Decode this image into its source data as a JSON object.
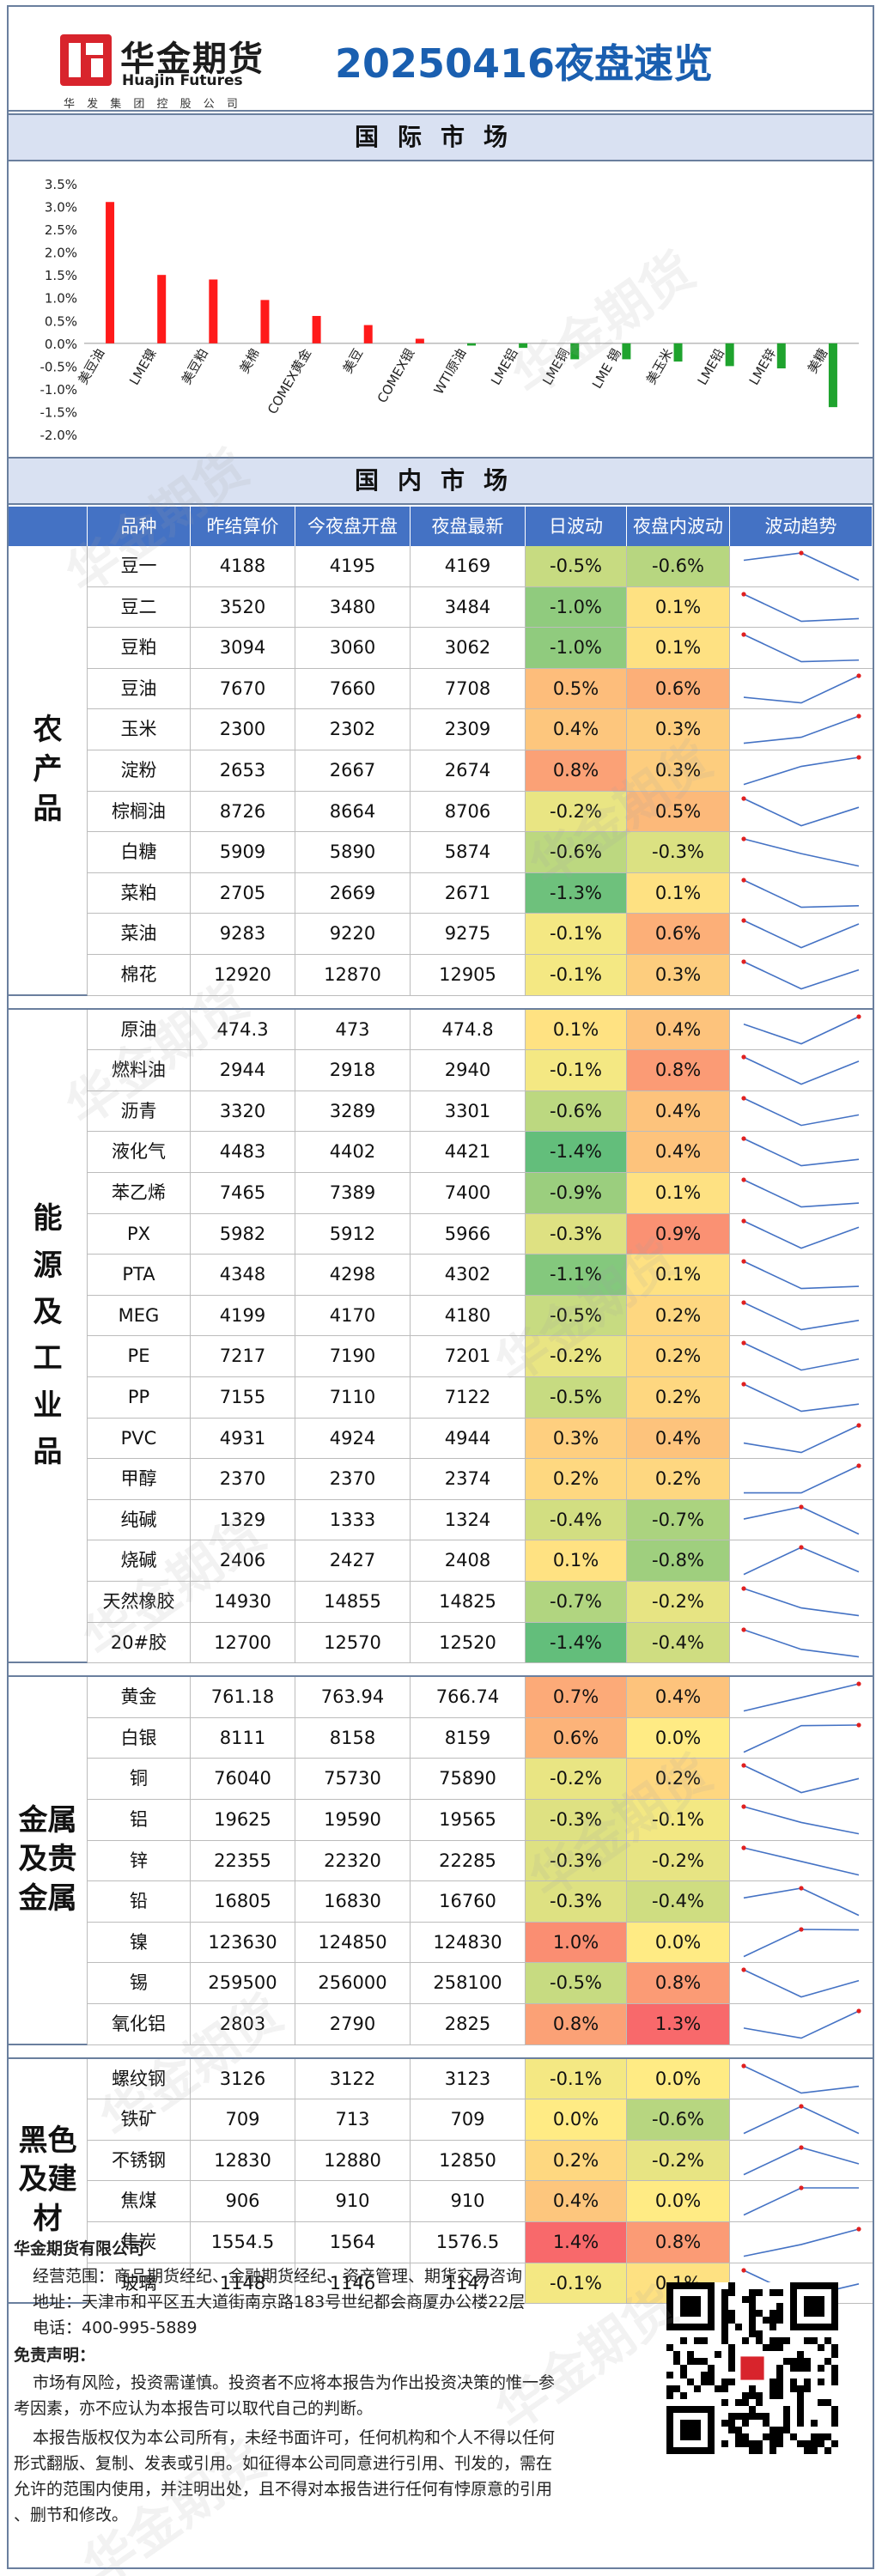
{
  "header": {
    "logo_cn": "华金期货",
    "logo_en": "Huajin Futures",
    "logo_sub": "华 发 集 团 控 股 公 司",
    "title": "20250416夜盘速览"
  },
  "sections": {
    "intl": "国际市场",
    "domestic": "国内市场"
  },
  "chart_data": {
    "type": "bar",
    "categories": [
      "美豆油",
      "LME镍",
      "美豆粕",
      "美棉",
      "COMEX黄金",
      "美豆",
      "COMEX银",
      "WTI原油",
      "LME铝",
      "LME铜",
      "LME 锡",
      "美玉米",
      "LME铅",
      "LME锌",
      "美糖"
    ],
    "values": [
      3.1,
      1.5,
      1.4,
      0.95,
      0.6,
      0.4,
      0.1,
      -0.05,
      -0.1,
      -0.35,
      -0.35,
      -0.4,
      -0.5,
      -0.55,
      -1.4
    ],
    "ylim": [
      -2.0,
      3.5
    ],
    "yticks": [
      "3.5%",
      "3.0%",
      "2.5%",
      "2.0%",
      "1.5%",
      "1.0%",
      "0.5%",
      "0.0%",
      "-0.5%",
      "-1.0%",
      "-1.5%",
      "-2.0%"
    ],
    "colors": {
      "positive": "#ff1a1a",
      "negative": "#1fa32e"
    }
  },
  "table": {
    "headers": [
      "品种",
      "昨结算价",
      "今夜盘开盘",
      "夜盘最新",
      "日波动",
      "夜盘内波动",
      "波动趋势"
    ],
    "groups": [
      {
        "name": "农产品",
        "rows": [
          [
            "豆一",
            "4188",
            "4195",
            "4169",
            "-0.5%",
            "-0.6%"
          ],
          [
            "豆二",
            "3520",
            "3480",
            "3484",
            "-1.0%",
            "0.1%"
          ],
          [
            "豆粕",
            "3094",
            "3060",
            "3062",
            "-1.0%",
            "0.1%"
          ],
          [
            "豆油",
            "7670",
            "7660",
            "7708",
            "0.5%",
            "0.6%"
          ],
          [
            "玉米",
            "2300",
            "2302",
            "2309",
            "0.4%",
            "0.3%"
          ],
          [
            "淀粉",
            "2653",
            "2667",
            "2674",
            "0.8%",
            "0.3%"
          ],
          [
            "棕榈油",
            "8726",
            "8664",
            "8706",
            "-0.2%",
            "0.5%"
          ],
          [
            "白糖",
            "5909",
            "5890",
            "5874",
            "-0.6%",
            "-0.3%"
          ],
          [
            "菜粕",
            "2705",
            "2669",
            "2671",
            "-1.3%",
            "0.1%"
          ],
          [
            "菜油",
            "9283",
            "9220",
            "9275",
            "-0.1%",
            "0.6%"
          ],
          [
            "棉花",
            "12920",
            "12870",
            "12905",
            "-0.1%",
            "0.3%"
          ]
        ]
      },
      {
        "name": "能源及工业品",
        "rows": [
          [
            "原油",
            "474.3",
            "473",
            "474.8",
            "0.1%",
            "0.4%"
          ],
          [
            "燃料油",
            "2944",
            "2918",
            "2940",
            "-0.1%",
            "0.8%"
          ],
          [
            "沥青",
            "3320",
            "3289",
            "3301",
            "-0.6%",
            "0.4%"
          ],
          [
            "液化气",
            "4483",
            "4402",
            "4421",
            "-1.4%",
            "0.4%"
          ],
          [
            "苯乙烯",
            "7465",
            "7389",
            "7400",
            "-0.9%",
            "0.1%"
          ],
          [
            "PX",
            "5982",
            "5912",
            "5966",
            "-0.3%",
            "0.9%"
          ],
          [
            "PTA",
            "4348",
            "4298",
            "4302",
            "-1.1%",
            "0.1%"
          ],
          [
            "MEG",
            "4199",
            "4170",
            "4180",
            "-0.5%",
            "0.2%"
          ],
          [
            "PE",
            "7217",
            "7190",
            "7201",
            "-0.2%",
            "0.2%"
          ],
          [
            "PP",
            "7155",
            "7110",
            "7122",
            "-0.5%",
            "0.2%"
          ],
          [
            "PVC",
            "4931",
            "4924",
            "4944",
            "0.3%",
            "0.4%"
          ],
          [
            "甲醇",
            "2370",
            "2370",
            "2374",
            "0.2%",
            "0.2%"
          ],
          [
            "纯碱",
            "1329",
            "1333",
            "1324",
            "-0.4%",
            "-0.7%"
          ],
          [
            "烧碱",
            "2406",
            "2427",
            "2408",
            "0.1%",
            "-0.8%"
          ],
          [
            "天然橡胶",
            "14930",
            "14855",
            "14825",
            "-0.7%",
            "-0.2%"
          ],
          [
            "20#胶",
            "12700",
            "12570",
            "12520",
            "-1.4%",
            "-0.4%"
          ]
        ]
      },
      {
        "name": "金属及贵金属",
        "rows": [
          [
            "黄金",
            "761.18",
            "763.94",
            "766.74",
            "0.7%",
            "0.4%"
          ],
          [
            "白银",
            "8111",
            "8158",
            "8159",
            "0.6%",
            "0.0%"
          ],
          [
            "铜",
            "76040",
            "75730",
            "75890",
            "-0.2%",
            "0.2%"
          ],
          [
            "铝",
            "19625",
            "19590",
            "19565",
            "-0.3%",
            "-0.1%"
          ],
          [
            "锌",
            "22355",
            "22320",
            "22285",
            "-0.3%",
            "-0.2%"
          ],
          [
            "铅",
            "16805",
            "16830",
            "16760",
            "-0.3%",
            "-0.4%"
          ],
          [
            "镍",
            "123630",
            "124850",
            "124830",
            "1.0%",
            "0.0%"
          ],
          [
            "锡",
            "259500",
            "256000",
            "258100",
            "-0.5%",
            "0.8%"
          ],
          [
            "氧化铝",
            "2803",
            "2790",
            "2825",
            "0.8%",
            "1.3%"
          ]
        ]
      },
      {
        "name": "黑色及建材",
        "rows": [
          [
            "螺纹钢",
            "3126",
            "3122",
            "3123",
            "-0.1%",
            "0.0%"
          ],
          [
            "铁矿",
            "709",
            "713",
            "709",
            "0.0%",
            "-0.6%"
          ],
          [
            "不锈钢",
            "12830",
            "12880",
            "12850",
            "0.2%",
            "-0.2%"
          ],
          [
            "焦煤",
            "906",
            "910",
            "910",
            "0.4%",
            "0.0%"
          ],
          [
            "焦炭",
            "1554.5",
            "1564",
            "1576.5",
            "1.4%",
            "0.8%"
          ],
          [
            "玻璃",
            "1148",
            "1146",
            "1147",
            "-0.1%",
            "0.1%"
          ]
        ]
      }
    ]
  },
  "footer": {
    "company": "华金期货有限公司",
    "scope": "经营范围：商品期货经纪、金融期货经纪、资产管理、期货交易咨询",
    "address": "地址：天津市和平区五大道街南京路183号世纪都会商厦办公楼22层",
    "phone": "电话：400-995-5889",
    "disclaimer_title": "免责声明：",
    "disclaimer_1a": "市场有风险，投资需谨慎。投资者不应将本报告为作出投资决策的惟一参",
    "disclaimer_1b": "考因素，亦不应认为本报告可以取代自己的判断。",
    "disclaimer_2a": "本报告版权仅为本公司所有，未经书面许可，任何机构和个人不得以任何",
    "disclaimer_2b": "形式翻版、复制、发表或引用。如征得本公司同意进行引用、刊发的，需在",
    "disclaimer_2c": "允许的范围内使用，并注明出处，且不得对本报告进行任何有悖原意的引用",
    "disclaimer_2d": "、删节和修改。"
  },
  "watermark": "华金期货"
}
